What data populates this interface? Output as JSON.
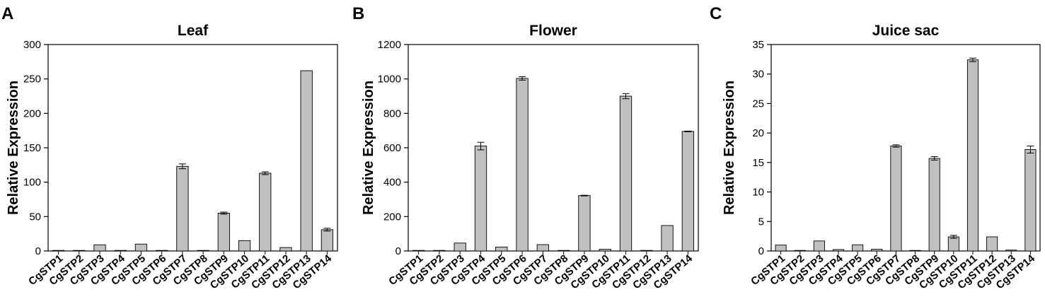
{
  "chart_data": [
    {
      "panel": "A",
      "type": "bar",
      "title": "Leaf",
      "ylabel": "Relative Expression",
      "xlabel": "",
      "ylim": [
        0,
        300
      ],
      "yticks": [
        0,
        50,
        100,
        150,
        200,
        250,
        300
      ],
      "grid": false,
      "bar_color": "#c0c0c0",
      "categories": [
        "CgSTP1",
        "CgSTP2",
        "CgSTP3",
        "CgSTP4",
        "CgSTP5",
        "CgSTP6",
        "CgSTP7",
        "CgSTP8",
        "CgSTP9",
        "CgSTP10",
        "CgSTP11",
        "CgSTP12",
        "CgSTP13",
        "CgSTP14"
      ],
      "values": [
        0.8,
        0.2,
        9,
        0.3,
        10,
        0.3,
        123,
        0.2,
        55,
        15,
        113,
        5,
        262,
        31
      ],
      "errors": [
        0,
        0,
        0,
        0,
        0,
        0,
        3.5,
        0,
        1.5,
        0,
        2,
        0,
        0,
        2
      ]
    },
    {
      "panel": "B",
      "type": "bar",
      "title": "Flower",
      "ylabel": "Relative Expression",
      "xlabel": "",
      "ylim": [
        0,
        1200
      ],
      "yticks": [
        0,
        200,
        400,
        600,
        800,
        1000,
        1200
      ],
      "grid": false,
      "bar_color": "#c0c0c0",
      "categories": [
        "CgSTP1",
        "CgSTP2",
        "CgSTP3",
        "CgSTP4",
        "CgSTP5",
        "CgSTP6",
        "CgSTP7",
        "CgSTP8",
        "CgSTP9",
        "CgSTP10",
        "CgSTP11",
        "CgSTP12",
        "CgSTP13",
        "CgSTP14"
      ],
      "values": [
        0.5,
        0.5,
        46,
        610,
        23,
        1003,
        37,
        3,
        322,
        10,
        900,
        0.5,
        148,
        695
      ],
      "errors": [
        0,
        0,
        0,
        22,
        0,
        10,
        0,
        0,
        2,
        0,
        15,
        0,
        0,
        2
      ]
    },
    {
      "panel": "C",
      "type": "bar",
      "title": "Juice sac",
      "ylabel": "Relative Expression",
      "xlabel": "",
      "ylim": [
        0,
        35
      ],
      "yticks": [
        0,
        5,
        10,
        15,
        20,
        25,
        30,
        35
      ],
      "grid": false,
      "bar_color": "#c0c0c0",
      "categories": [
        "CgSTP1",
        "CgSTP2",
        "CgSTP3",
        "CgSTP4",
        "CgSTP5",
        "CgSTP6",
        "CgSTP7",
        "CgSTP8",
        "CgSTP9",
        "CgSTP10",
        "CgSTP11",
        "CgSTP12",
        "CgSTP13",
        "CgSTP14"
      ],
      "values": [
        1.0,
        0.02,
        1.7,
        0.25,
        1.05,
        0.3,
        17.8,
        0.02,
        15.7,
        2.4,
        32.4,
        2.4,
        0.15,
        17.2
      ],
      "errors": [
        0,
        0,
        0,
        0,
        0,
        0,
        0.2,
        0,
        0.3,
        0.25,
        0.3,
        0,
        0,
        0.6
      ]
    }
  ]
}
